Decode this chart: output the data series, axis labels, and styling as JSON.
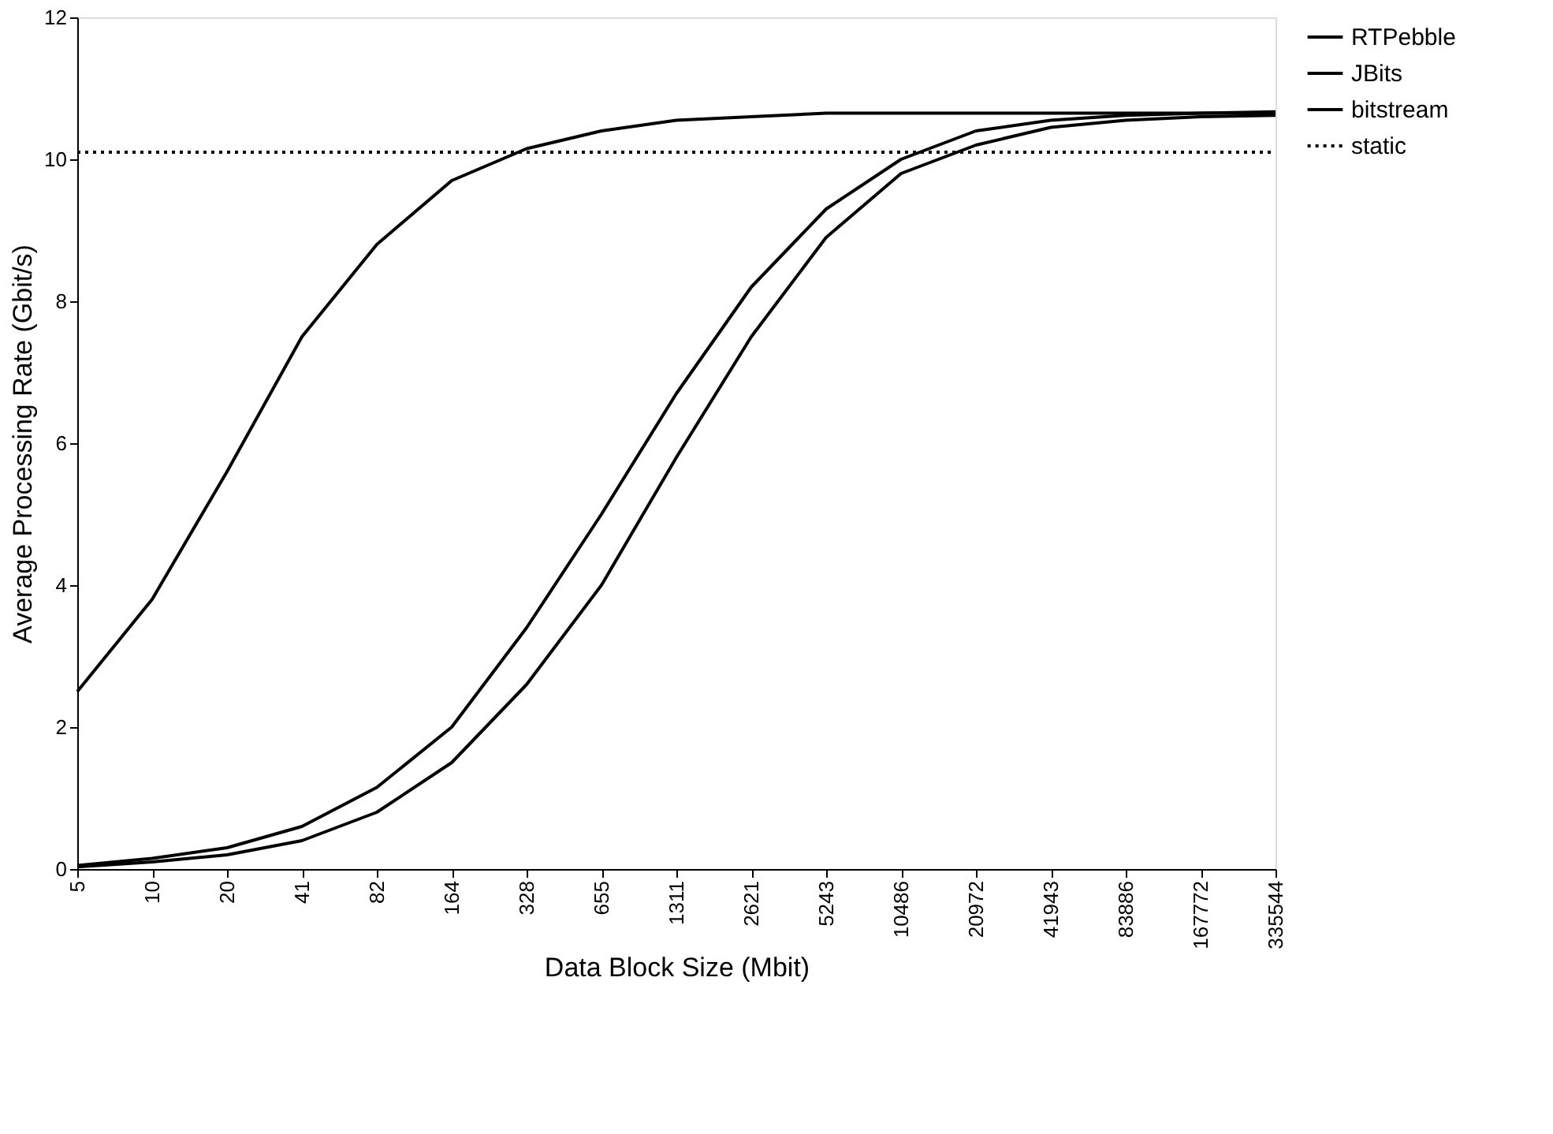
{
  "chart_data": {
    "type": "line",
    "xlabel": "Data Block Size (Mbit)",
    "ylabel": "Average Processing Rate (Gbit/s)",
    "categories": [
      "5",
      "10",
      "20",
      "41",
      "82",
      "164",
      "328",
      "655",
      "1311",
      "2621",
      "5243",
      "10486",
      "20972",
      "41943",
      "83886",
      "167772",
      "335544"
    ],
    "ylim": [
      0,
      12
    ],
    "yticks": [
      0,
      2,
      4,
      6,
      8,
      10,
      12
    ],
    "grid": false,
    "legend": "right",
    "marker": "none",
    "series": [
      {
        "name": "RTPebble",
        "color": "#000000",
        "line_style": "solid",
        "values": [
          0.03,
          0.1,
          0.2,
          0.4,
          0.8,
          1.5,
          2.6,
          4.0,
          5.8,
          7.5,
          8.9,
          9.8,
          10.2,
          10.45,
          10.55,
          10.6,
          10.62
        ]
      },
      {
        "name": "JBits",
        "color": "#000000",
        "line_style": "solid",
        "values": [
          0.05,
          0.15,
          0.3,
          0.6,
          1.15,
          2.0,
          3.4,
          5.0,
          6.7,
          8.2,
          9.3,
          10.0,
          10.4,
          10.55,
          10.62,
          10.65,
          10.67
        ]
      },
      {
        "name": "bitstream",
        "color": "#000000",
        "line_style": "solid",
        "values": [
          2.5,
          3.8,
          5.6,
          7.5,
          8.8,
          9.7,
          10.15,
          10.4,
          10.55,
          10.6,
          10.65,
          10.65,
          10.65,
          10.65,
          10.65,
          10.65,
          10.65
        ]
      },
      {
        "name": "static",
        "color": "#000000",
        "line_style": "dotted",
        "values": [
          10.1,
          10.1,
          10.1,
          10.1,
          10.1,
          10.1,
          10.1,
          10.1,
          10.1,
          10.1,
          10.1,
          10.1,
          10.1,
          10.1,
          10.1,
          10.1,
          10.1
        ]
      }
    ]
  }
}
